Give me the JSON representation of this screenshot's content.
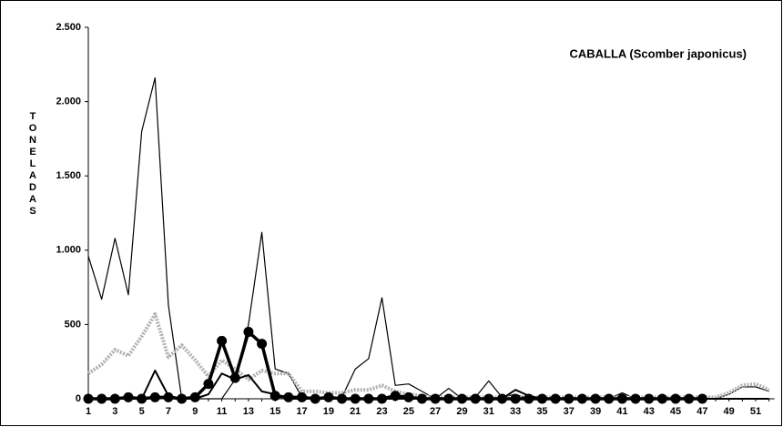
{
  "chart_data": {
    "type": "line",
    "title": "CABALLA (Scomber japonicus)",
    "y_label": "TONELADAS",
    "categories": [
      1,
      null,
      3,
      null,
      5,
      null,
      7,
      null,
      9,
      null,
      11,
      null,
      13,
      null,
      15,
      null,
      17,
      null,
      19,
      null,
      21,
      null,
      23,
      null,
      25,
      null,
      27,
      null,
      29,
      null,
      31,
      null,
      33,
      null,
      35,
      null,
      37,
      null,
      39,
      null,
      41,
      null,
      43,
      null,
      45,
      null,
      47,
      null,
      49,
      null,
      51,
      null
    ],
    "ylim": [
      0,
      2500
    ],
    "yticks": [
      0,
      500,
      {
        "value": 1000,
        "label": "1.000"
      },
      {
        "value": 1500,
        "label": "1.500"
      },
      {
        "value": 2000,
        "label": "2.000"
      },
      {
        "value": 2500,
        "label": "2.500"
      }
    ],
    "series": [
      {
        "color": "#000000",
        "style": "thin",
        "values": [
          960,
          670,
          1080,
          700,
          1800,
          2160,
          630,
          0,
          0,
          0,
          0,
          130,
          500,
          1120,
          200,
          170,
          10,
          0,
          0,
          10,
          200,
          270,
          680,
          90,
          100,
          50,
          0,
          70,
          0,
          10,
          120,
          10,
          30,
          0,
          0,
          0,
          0,
          0,
          0,
          0,
          40,
          0,
          0,
          0,
          0,
          0,
          0,
          0,
          30,
          80,
          80,
          50
        ]
      },
      {
        "color": "#b0b0b0",
        "style": "dotted",
        "values": [
          170,
          230,
          330,
          290,
          420,
          570,
          280,
          360,
          260,
          150,
          260,
          200,
          130,
          190,
          170,
          170,
          50,
          50,
          40,
          40,
          60,
          60,
          90,
          50,
          30,
          20,
          10,
          10,
          10,
          10,
          10,
          10,
          10,
          10,
          10,
          10,
          10,
          10,
          10,
          10,
          10,
          10,
          10,
          10,
          10,
          10,
          10,
          10,
          40,
          90,
          100,
          60
        ]
      },
      {
        "color": "#000000",
        "style": "thick-marker",
        "values": [
          0,
          0,
          0,
          10,
          0,
          10,
          10,
          0,
          10,
          100,
          390,
          140,
          450,
          370,
          20,
          10,
          10,
          0,
          10,
          0,
          0,
          0,
          0,
          20,
          10,
          0,
          0,
          0,
          0,
          0,
          0,
          0,
          0,
          0,
          0,
          0,
          0,
          0,
          0,
          0,
          0,
          0,
          0,
          0,
          0,
          0,
          0,
          null,
          null,
          null,
          null,
          null
        ]
      },
      {
        "color": "#000000",
        "style": "medium",
        "values": [
          0,
          0,
          0,
          0,
          0,
          190,
          20,
          0,
          0,
          30,
          170,
          130,
          160,
          50,
          30,
          0,
          0,
          0,
          0,
          0,
          0,
          0,
          0,
          0,
          0,
          0,
          0,
          0,
          0,
          0,
          0,
          0,
          60,
          20,
          0,
          0,
          0,
          0,
          0,
          0,
          0,
          0,
          0,
          0,
          0,
          0,
          0,
          0,
          0,
          0,
          0,
          0
        ]
      }
    ]
  }
}
